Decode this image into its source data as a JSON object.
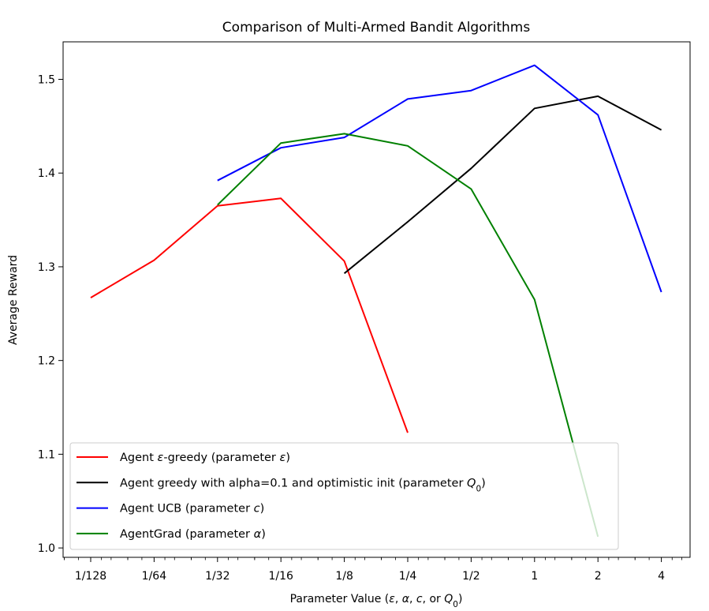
{
  "chart_data": {
    "type": "line",
    "title": "Comparison of Multi-Armed Bandit Algorithms",
    "xlabel_parts": [
      "Parameter Value (",
      "ε",
      ", ",
      "α",
      ", ",
      "c",
      ", or ",
      "Q",
      "0",
      ")"
    ],
    "ylabel": "Average Reward",
    "x_scale": "log2",
    "x_ticks": [
      {
        "value": 0.0078125,
        "label": "1/128"
      },
      {
        "value": 0.015625,
        "label": "1/64"
      },
      {
        "value": 0.03125,
        "label": "1/32"
      },
      {
        "value": 0.0625,
        "label": "1/16"
      },
      {
        "value": 0.125,
        "label": "1/8"
      },
      {
        "value": 0.25,
        "label": "1/4"
      },
      {
        "value": 0.5,
        "label": "1/2"
      },
      {
        "value": 1,
        "label": "1"
      },
      {
        "value": 2,
        "label": "2"
      },
      {
        "value": 4,
        "label": "4"
      }
    ],
    "y_ticks": [
      1.0,
      1.1,
      1.2,
      1.3,
      1.4,
      1.5
    ],
    "y_tick_labels": [
      "1.0",
      "1.1",
      "1.2",
      "1.3",
      "1.4",
      "1.5"
    ],
    "ylim": [
      0.99,
      1.54
    ],
    "grid": false,
    "legend_position": "lower-left",
    "series": [
      {
        "name_parts": [
          "Agent ",
          "ε",
          "-greedy (parameter ",
          "ε",
          ")"
        ],
        "color": "#ff0000",
        "x": [
          0.0078125,
          0.015625,
          0.03125,
          0.0625,
          0.125,
          0.25
        ],
        "y": [
          1.267,
          1.307,
          1.365,
          1.373,
          1.306,
          1.123
        ]
      },
      {
        "name_parts": [
          "Agent greedy with alpha=0.1 and optimistic init (parameter ",
          "Q",
          "0",
          ")"
        ],
        "color": "#000000",
        "x": [
          0.125,
          0.25,
          0.5,
          1,
          2,
          4
        ],
        "y": [
          1.293,
          1.348,
          1.405,
          1.469,
          1.482,
          1.446
        ]
      },
      {
        "name_parts": [
          "Agent UCB (parameter ",
          "c",
          ")"
        ],
        "color": "#0000ff",
        "x": [
          0.03125,
          0.0625,
          0.125,
          0.25,
          0.5,
          1,
          2,
          4
        ],
        "y": [
          1.392,
          1.427,
          1.438,
          1.479,
          1.488,
          1.515,
          1.462,
          1.273
        ]
      },
      {
        "name_parts": [
          "AgentGrad (parameter ",
          "α",
          ")"
        ],
        "color": "#008000",
        "x": [
          0.03125,
          0.0625,
          0.125,
          0.25,
          0.5,
          1,
          2
        ],
        "y": [
          1.366,
          1.432,
          1.442,
          1.429,
          1.383,
          1.265,
          1.012
        ]
      }
    ]
  }
}
